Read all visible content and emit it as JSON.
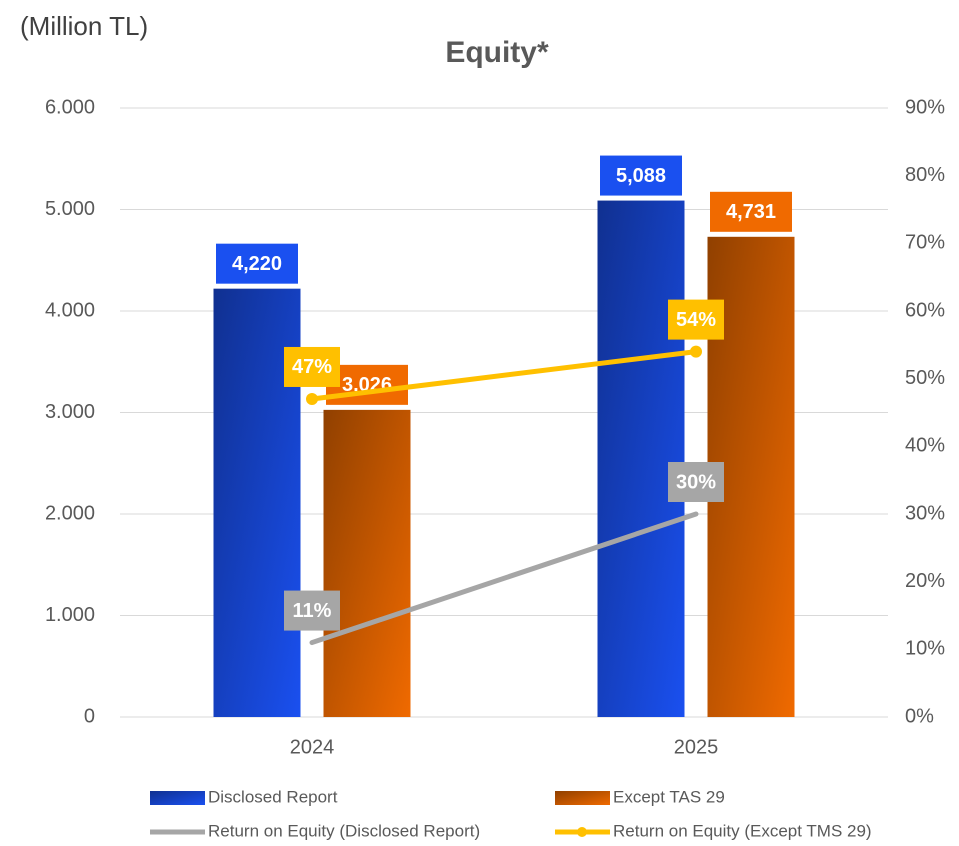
{
  "chart_data": {
    "type": "bar",
    "title": "Equity*",
    "unit_label": "(Million TL)",
    "categories": [
      "2024",
      "2025"
    ],
    "ylim": [
      0,
      6000
    ],
    "yticks": [
      0,
      {
        "value": 1000,
        "label": "1.000"
      },
      {
        "value": 2000,
        "label": "2.000"
      },
      {
        "value": 3000,
        "label": "3.000"
      },
      {
        "value": 4000,
        "label": "4.000"
      },
      {
        "value": 5000,
        "label": "5.000"
      },
      {
        "value": 6000,
        "label": "6.000"
      }
    ],
    "y2lim": [
      0,
      90
    ],
    "y2ticks": [
      {
        "value": 0,
        "label": "0%"
      },
      {
        "value": 10,
        "label": "10%"
      },
      {
        "value": 20,
        "label": "20%"
      },
      {
        "value": 30,
        "label": "30%"
      },
      {
        "value": 40,
        "label": "40%"
      },
      {
        "value": 50,
        "label": "50%"
      },
      {
        "value": 60,
        "label": "60%"
      },
      {
        "value": 70,
        "label": "70%"
      },
      {
        "value": 80,
        "label": "80%"
      },
      {
        "value": 90,
        "label": "90%"
      }
    ],
    "grid": true,
    "series": [
      {
        "name": "Disclosed Report",
        "type": "bar",
        "color": "#1a50f0",
        "values": [
          4220,
          5088
        ],
        "value_labels": [
          "4,220",
          "5,088"
        ]
      },
      {
        "name": "Except TAS 29",
        "type": "bar",
        "color": "#f06a00",
        "values": [
          3026,
          4731
        ],
        "value_labels": [
          "3,026",
          "4,731"
        ]
      },
      {
        "name": "Return on Equity (Disclosed Report)",
        "type": "line",
        "axis": "y2",
        "marker": false,
        "color": "#a6a6a6",
        "values": [
          11,
          30
        ],
        "value_labels": [
          "11%",
          "30%"
        ]
      },
      {
        "name": "Return on Equity (Except TMS 29)",
        "type": "line",
        "axis": "y2",
        "marker": true,
        "color": "#ffc000",
        "values": [
          47,
          54
        ],
        "value_labels": [
          "47%",
          "54%"
        ]
      }
    ]
  }
}
